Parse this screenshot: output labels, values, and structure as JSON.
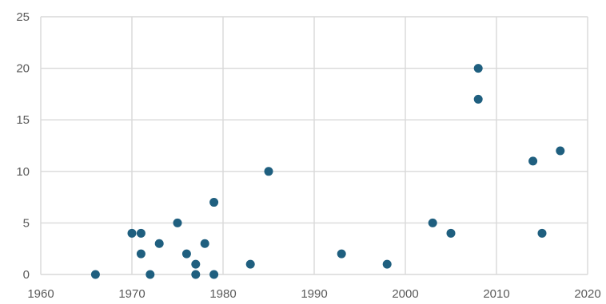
{
  "chart_data": {
    "type": "scatter",
    "title": "",
    "xlabel": "",
    "ylabel": "",
    "xlim": [
      1960,
      2020
    ],
    "ylim": [
      0,
      25
    ],
    "x_ticks": [
      1960,
      1970,
      1980,
      1990,
      2000,
      2010,
      2020
    ],
    "y_ticks": [
      0,
      5,
      10,
      15,
      20,
      25
    ],
    "x_tick_labels": [
      "1960",
      "1970",
      "1980",
      "1990",
      "2000",
      "2010",
      "2020"
    ],
    "y_tick_labels": [
      "0",
      "5",
      "10",
      "15",
      "20",
      "25"
    ],
    "grid": true,
    "legend": "none",
    "marker_color": "#1f5f7f",
    "points": [
      {
        "x": 1966,
        "y": 0
      },
      {
        "x": 1970,
        "y": 4
      },
      {
        "x": 1971,
        "y": 4
      },
      {
        "x": 1971,
        "y": 2
      },
      {
        "x": 1972,
        "y": 0
      },
      {
        "x": 1973,
        "y": 3
      },
      {
        "x": 1975,
        "y": 5
      },
      {
        "x": 1976,
        "y": 2
      },
      {
        "x": 1977,
        "y": 1
      },
      {
        "x": 1977,
        "y": 0
      },
      {
        "x": 1978,
        "y": 3
      },
      {
        "x": 1979,
        "y": 7
      },
      {
        "x": 1979,
        "y": 0
      },
      {
        "x": 1983,
        "y": 1
      },
      {
        "x": 1985,
        "y": 10
      },
      {
        "x": 1993,
        "y": 2
      },
      {
        "x": 1998,
        "y": 1
      },
      {
        "x": 2003,
        "y": 5
      },
      {
        "x": 2005,
        "y": 4
      },
      {
        "x": 2008,
        "y": 20
      },
      {
        "x": 2008,
        "y": 17
      },
      {
        "x": 2014,
        "y": 11
      },
      {
        "x": 2015,
        "y": 4
      },
      {
        "x": 2017,
        "y": 12
      }
    ]
  }
}
